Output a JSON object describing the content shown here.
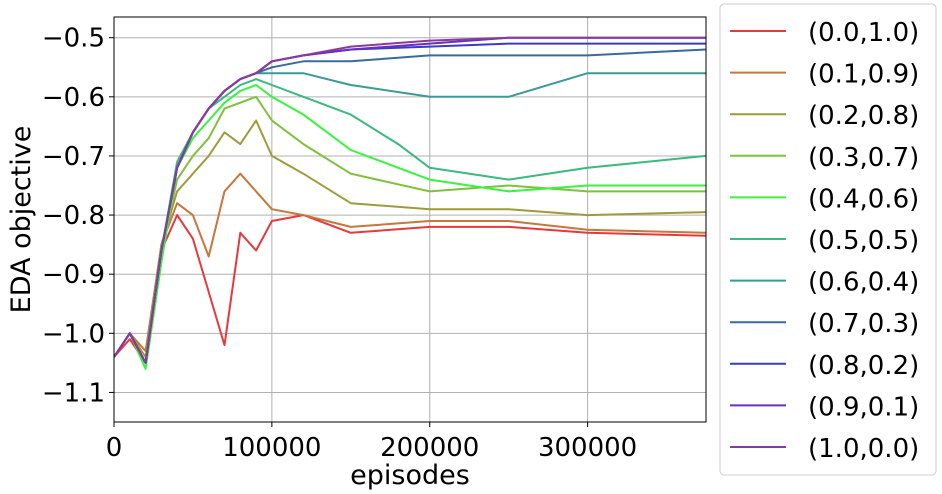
{
  "chart_data": {
    "type": "line",
    "xlabel": "episodes",
    "ylabel": "EDA objective",
    "xlim": [
      0,
      375000
    ],
    "ylim": [
      -1.15,
      -0.465
    ],
    "x_ticks": [
      0,
      100000,
      200000,
      300000
    ],
    "x_tick_labels": [
      "0",
      "100000",
      "200000",
      "300000"
    ],
    "y_ticks": [
      -1.1,
      -1.0,
      -0.9,
      -0.8,
      -0.7,
      -0.6,
      -0.5
    ],
    "y_tick_labels": [
      "−1.1",
      "−1.0",
      "−0.9",
      "−0.8",
      "−0.7",
      "−0.6",
      "−0.5"
    ],
    "grid": true,
    "legend_placement": "outside-right",
    "series": [
      {
        "name": "(0.0,1.0)",
        "color": "#e8383d",
        "x": [
          0,
          10000,
          20000,
          30000,
          40000,
          50000,
          60000,
          70000,
          80000,
          90000,
          100000,
          120000,
          150000,
          200000,
          250000,
          300000,
          375000
        ],
        "y": [
          -1.04,
          -1.01,
          -1.05,
          -0.86,
          -0.8,
          -0.84,
          -0.93,
          -1.02,
          -0.83,
          -0.86,
          -0.81,
          -0.8,
          -0.83,
          -0.82,
          -0.82,
          -0.83,
          -0.835
        ]
      },
      {
        "name": "(0.1,0.9)",
        "color": "#c8763a",
        "x": [
          0,
          10000,
          20000,
          30000,
          40000,
          50000,
          60000,
          70000,
          80000,
          90000,
          100000,
          120000,
          150000,
          200000,
          250000,
          300000,
          375000
        ],
        "y": [
          -1.04,
          -1.0,
          -1.03,
          -0.85,
          -0.78,
          -0.8,
          -0.87,
          -0.76,
          -0.73,
          -0.76,
          -0.79,
          -0.8,
          -0.82,
          -0.81,
          -0.81,
          -0.825,
          -0.83
        ]
      },
      {
        "name": "(0.2,0.8)",
        "color": "#9e9c3a",
        "x": [
          0,
          10000,
          20000,
          30000,
          40000,
          50000,
          60000,
          70000,
          80000,
          90000,
          100000,
          120000,
          150000,
          200000,
          250000,
          300000,
          375000
        ],
        "y": [
          -1.04,
          -1.0,
          -1.04,
          -0.85,
          -0.76,
          -0.73,
          -0.7,
          -0.66,
          -0.68,
          -0.64,
          -0.7,
          -0.73,
          -0.78,
          -0.79,
          -0.79,
          -0.8,
          -0.795
        ]
      },
      {
        "name": "(0.3,0.7)",
        "color": "#7ec13a",
        "x": [
          0,
          10000,
          20000,
          30000,
          40000,
          50000,
          60000,
          70000,
          80000,
          90000,
          100000,
          120000,
          150000,
          200000,
          250000,
          300000,
          375000
        ],
        "y": [
          -1.04,
          -1.0,
          -1.05,
          -0.86,
          -0.74,
          -0.7,
          -0.67,
          -0.62,
          -0.61,
          -0.6,
          -0.64,
          -0.68,
          -0.73,
          -0.76,
          -0.75,
          -0.76,
          -0.76
        ]
      },
      {
        "name": "(0.4,0.6)",
        "color": "#37f53a",
        "x": [
          0,
          10000,
          20000,
          30000,
          40000,
          50000,
          60000,
          70000,
          80000,
          90000,
          100000,
          120000,
          150000,
          200000,
          250000,
          300000,
          375000
        ],
        "y": [
          -1.04,
          -1.0,
          -1.06,
          -0.88,
          -0.72,
          -0.67,
          -0.64,
          -0.61,
          -0.59,
          -0.58,
          -0.6,
          -0.63,
          -0.69,
          -0.74,
          -0.76,
          -0.75,
          -0.75
        ]
      },
      {
        "name": "(0.5,0.5)",
        "color": "#3aba7e",
        "x": [
          0,
          10000,
          20000,
          30000,
          40000,
          50000,
          60000,
          70000,
          80000,
          90000,
          100000,
          120000,
          150000,
          180000,
          200000,
          250000,
          300000,
          375000
        ],
        "y": [
          -1.04,
          -1.0,
          -1.05,
          -0.86,
          -0.71,
          -0.66,
          -0.62,
          -0.6,
          -0.58,
          -0.57,
          -0.58,
          -0.6,
          -0.63,
          -0.68,
          -0.72,
          -0.74,
          -0.72,
          -0.7
        ]
      },
      {
        "name": "(0.6,0.4)",
        "color": "#3a9a9a",
        "x": [
          0,
          10000,
          20000,
          30000,
          40000,
          50000,
          60000,
          70000,
          80000,
          90000,
          100000,
          120000,
          150000,
          200000,
          250000,
          300000,
          375000
        ],
        "y": [
          -1.04,
          -1.0,
          -1.05,
          -0.86,
          -0.72,
          -0.66,
          -0.62,
          -0.59,
          -0.57,
          -0.56,
          -0.56,
          -0.56,
          -0.58,
          -0.6,
          -0.6,
          -0.56,
          -0.56
        ]
      },
      {
        "name": "(0.7,0.3)",
        "color": "#3a6a9e",
        "x": [
          0,
          10000,
          20000,
          30000,
          40000,
          50000,
          60000,
          70000,
          80000,
          90000,
          100000,
          120000,
          150000,
          200000,
          250000,
          300000,
          375000
        ],
        "y": [
          -1.04,
          -1.0,
          -1.05,
          -0.86,
          -0.72,
          -0.66,
          -0.62,
          -0.59,
          -0.57,
          -0.56,
          -0.55,
          -0.54,
          -0.54,
          -0.53,
          -0.53,
          -0.53,
          -0.52
        ]
      },
      {
        "name": "(0.8,0.2)",
        "color": "#3a3ac8",
        "x": [
          0,
          10000,
          20000,
          30000,
          40000,
          50000,
          60000,
          70000,
          80000,
          90000,
          100000,
          120000,
          150000,
          200000,
          250000,
          300000,
          375000
        ],
        "y": [
          -1.04,
          -1.0,
          -1.05,
          -0.86,
          -0.72,
          -0.66,
          -0.62,
          -0.59,
          -0.57,
          -0.56,
          -0.54,
          -0.53,
          -0.52,
          -0.515,
          -0.51,
          -0.51,
          -0.51
        ]
      },
      {
        "name": "(0.9,0.1)",
        "color": "#6a2ec0",
        "x": [
          0,
          10000,
          20000,
          30000,
          40000,
          50000,
          60000,
          70000,
          80000,
          90000,
          100000,
          120000,
          150000,
          200000,
          250000,
          300000,
          375000
        ],
        "y": [
          -1.04,
          -1.0,
          -1.05,
          -0.86,
          -0.72,
          -0.66,
          -0.62,
          -0.59,
          -0.57,
          -0.56,
          -0.54,
          -0.53,
          -0.52,
          -0.51,
          -0.5,
          -0.5,
          -0.5
        ]
      },
      {
        "name": "(1.0,0.0)",
        "color": "#8a3a9e",
        "x": [
          0,
          10000,
          20000,
          30000,
          40000,
          50000,
          60000,
          70000,
          80000,
          90000,
          100000,
          120000,
          150000,
          200000,
          250000,
          300000,
          375000
        ],
        "y": [
          -1.04,
          -1.0,
          -1.05,
          -0.86,
          -0.72,
          -0.66,
          -0.62,
          -0.59,
          -0.57,
          -0.56,
          -0.54,
          -0.53,
          -0.515,
          -0.505,
          -0.5,
          -0.5,
          -0.5
        ]
      }
    ]
  }
}
